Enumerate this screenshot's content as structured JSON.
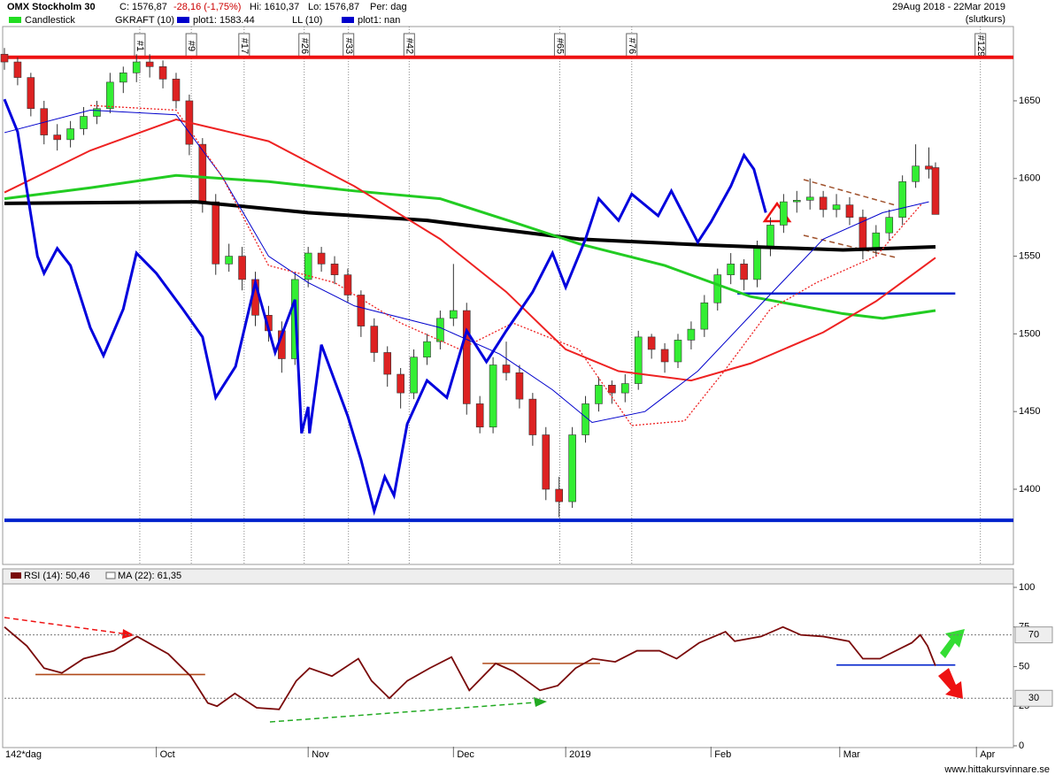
{
  "chart_data": {
    "type": "candlestick",
    "title": "OMX Stockholm 30",
    "header": {
      "close": "C: 1576,87",
      "change": "-28,16 (-1,75%)",
      "high": "Hi: 1610,37",
      "low": "Lo: 1576,87",
      "period": "Per: dag",
      "range": "29Aug 2018 - 22Mar 2019",
      "mode": "(slutkurs)"
    },
    "legend": [
      {
        "label": "Candlestick",
        "color": "#22dd22"
      },
      {
        "label": "GKRAFT (10)",
        "color": null
      },
      {
        "label": "plot1: 1583.44",
        "color": "#0000cc"
      },
      {
        "label": "LL (10)",
        "color": null
      },
      {
        "label": "plot1: nan",
        "color": "#0000cc"
      }
    ],
    "up_color": "#33ee33",
    "down_color": "#dd2222",
    "xlim": [
      0,
      152.8
    ],
    "xticks": [
      {
        "value": 23,
        "label": "Oct"
      },
      {
        "value": 46,
        "label": "Nov"
      },
      {
        "value": 68,
        "label": "Dec"
      },
      {
        "value": 85,
        "label": "2019"
      },
      {
        "value": 107,
        "label": "Feb"
      },
      {
        "value": 126.5,
        "label": "Mar"
      },
      {
        "value": 147.2,
        "label": "Apr"
      }
    ],
    "period_label": "142*dag",
    "ylim": [
      1351.6,
      1697.8
    ],
    "yticks": [
      1400,
      1450,
      1500,
      1550,
      1600,
      1650
    ],
    "candles": [
      [
        0,
        1680,
        1684,
        1670,
        1675
      ],
      [
        2,
        1675,
        1678,
        1660,
        1665
      ],
      [
        4,
        1665,
        1668,
        1640,
        1645
      ],
      [
        6,
        1645,
        1650,
        1622,
        1628
      ],
      [
        8,
        1628,
        1635,
        1618,
        1625
      ],
      [
        10,
        1625,
        1637,
        1620,
        1632
      ],
      [
        12,
        1632,
        1646,
        1628,
        1640
      ],
      [
        14,
        1640,
        1650,
        1635,
        1645
      ],
      [
        16,
        1645,
        1668,
        1642,
        1662
      ],
      [
        18,
        1662,
        1672,
        1655,
        1668
      ],
      [
        20,
        1668,
        1680,
        1662,
        1675
      ],
      [
        22,
        1675,
        1680,
        1665,
        1672
      ],
      [
        24,
        1672,
        1676,
        1658,
        1664
      ],
      [
        26,
        1664,
        1668,
        1645,
        1650
      ],
      [
        28,
        1650,
        1654,
        1615,
        1622
      ],
      [
        30,
        1622,
        1626,
        1578,
        1585
      ],
      [
        32,
        1585,
        1590,
        1538,
        1545
      ],
      [
        34,
        1545,
        1558,
        1540,
        1550
      ],
      [
        36,
        1550,
        1556,
        1528,
        1535
      ],
      [
        38,
        1535,
        1540,
        1505,
        1512
      ],
      [
        40,
        1512,
        1518,
        1495,
        1502
      ],
      [
        42,
        1502,
        1508,
        1475,
        1484
      ],
      [
        44,
        1484,
        1540,
        1480,
        1535
      ],
      [
        46,
        1535,
        1556,
        1530,
        1552
      ],
      [
        48,
        1552,
        1556,
        1540,
        1545
      ],
      [
        50,
        1545,
        1550,
        1532,
        1538
      ],
      [
        52,
        1538,
        1542,
        1520,
        1525
      ],
      [
        54,
        1525,
        1528,
        1498,
        1505
      ],
      [
        56,
        1505,
        1510,
        1482,
        1488
      ],
      [
        58,
        1488,
        1492,
        1466,
        1474
      ],
      [
        60,
        1474,
        1478,
        1452,
        1462
      ],
      [
        62,
        1462,
        1490,
        1458,
        1485
      ],
      [
        64,
        1485,
        1500,
        1480,
        1495
      ],
      [
        66,
        1495,
        1515,
        1490,
        1510
      ],
      [
        68,
        1510,
        1545,
        1505,
        1515
      ],
      [
        70,
        1515,
        1520,
        1448,
        1455
      ],
      [
        72,
        1455,
        1460,
        1436,
        1440
      ],
      [
        74,
        1440,
        1485,
        1436,
        1480
      ],
      [
        76,
        1480,
        1495,
        1470,
        1475
      ],
      [
        78,
        1475,
        1480,
        1452,
        1458
      ],
      [
        80,
        1458,
        1462,
        1428,
        1435
      ],
      [
        82,
        1435,
        1440,
        1393,
        1400
      ],
      [
        84,
        1400,
        1408,
        1382,
        1392
      ],
      [
        86,
        1392,
        1440,
        1388,
        1435
      ],
      [
        88,
        1435,
        1460,
        1430,
        1455
      ],
      [
        90,
        1455,
        1472,
        1450,
        1467
      ],
      [
        92,
        1467,
        1470,
        1455,
        1462
      ],
      [
        94,
        1462,
        1474,
        1456,
        1468
      ],
      [
        96,
        1468,
        1502,
        1464,
        1498
      ],
      [
        98,
        1498,
        1500,
        1484,
        1490
      ],
      [
        100,
        1490,
        1494,
        1475,
        1482
      ],
      [
        102,
        1482,
        1500,
        1478,
        1496
      ],
      [
        104,
        1496,
        1508,
        1490,
        1503
      ],
      [
        106,
        1503,
        1525,
        1498,
        1520
      ],
      [
        108,
        1520,
        1542,
        1515,
        1538
      ],
      [
        110,
        1538,
        1552,
        1532,
        1545
      ],
      [
        112,
        1545,
        1548,
        1528,
        1535
      ],
      [
        114,
        1535,
        1560,
        1530,
        1555
      ],
      [
        116,
        1555,
        1575,
        1550,
        1570
      ],
      [
        118,
        1570,
        1590,
        1565,
        1585
      ],
      [
        120,
        1585,
        1592,
        1578,
        1586
      ],
      [
        122,
        1586,
        1600,
        1580,
        1588
      ],
      [
        124,
        1588,
        1592,
        1575,
        1580
      ],
      [
        126,
        1580,
        1590,
        1575,
        1583
      ],
      [
        128,
        1583,
        1588,
        1570,
        1575
      ],
      [
        130,
        1575,
        1580,
        1548,
        1555
      ],
      [
        132,
        1555,
        1570,
        1550,
        1565
      ],
      [
        134,
        1565,
        1580,
        1560,
        1575
      ],
      [
        136,
        1575,
        1602,
        1570,
        1598
      ],
      [
        138,
        1598,
        1622,
        1594,
        1608
      ],
      [
        140,
        1608,
        1620,
        1600,
        1606
      ],
      [
        141,
        1607,
        1610.37,
        1576.87,
        1576.87
      ]
    ],
    "lines": [
      {
        "color": "#000000",
        "width": 4,
        "x": [
          0,
          29,
          46,
          64,
          87,
          107,
          127,
          141
        ],
        "values": [
          1584,
          1585,
          1578,
          1573,
          1561,
          1557,
          1554,
          1556
        ]
      },
      {
        "color": "#22cc22",
        "width": 3,
        "x": [
          0,
          13,
          26,
          40,
          53,
          66,
          77,
          87,
          100,
          113,
          127,
          133,
          141
        ],
        "values": [
          1587,
          1594,
          1602,
          1598,
          1592,
          1587,
          1572,
          1558,
          1544,
          1524,
          1513,
          1510,
          1515
        ]
      },
      {
        "color": "#ee2222",
        "width": 2,
        "x": [
          0,
          13,
          26,
          40,
          53,
          66,
          76,
          85,
          93,
          104,
          113,
          124,
          132,
          141
        ],
        "values": [
          1591,
          1618,
          1638,
          1624,
          1595,
          1561,
          1527,
          1490,
          1476,
          1470,
          1481,
          1501,
          1521,
          1549
        ]
      },
      {
        "color": "#0000cc",
        "width": 1,
        "x": [
          0,
          13,
          26,
          33,
          40,
          46,
          53,
          66,
          75,
          83,
          89,
          97,
          105,
          115,
          124,
          133,
          140
        ],
        "values": [
          1629.5,
          1644,
          1641,
          1601,
          1550,
          1533,
          1518,
          1504,
          1487,
          1464,
          1443,
          1450,
          1476,
          1521,
          1561,
          1578,
          1585
        ]
      },
      {
        "color": "#ee2222",
        "width": 1.3,
        "dash": true,
        "x": [
          13,
          26,
          33,
          40,
          50,
          60,
          69,
          77,
          87,
          95,
          103,
          109,
          116,
          123,
          132,
          139
        ],
        "values": [
          1647,
          1644,
          1601,
          1544,
          1533,
          1507,
          1490,
          1507,
          1490,
          1441,
          1444,
          1476,
          1516,
          1533,
          1550,
          1584
        ]
      },
      {
        "color": "#0000dd",
        "width": 3,
        "x": [
          0,
          2,
          5,
          6,
          8,
          10,
          13,
          15,
          18,
          20,
          23,
          27,
          30,
          32,
          35,
          38,
          41,
          44,
          45,
          46,
          46.2,
          48,
          52,
          54,
          56,
          57.6,
          59,
          61,
          64,
          67,
          70,
          73,
          76,
          80,
          83,
          85,
          88,
          90,
          93,
          95,
          99,
          101,
          105,
          107,
          110,
          112,
          113.5,
          115.3
        ],
        "values": [
          1651,
          1630,
          1550,
          1539,
          1555,
          1544,
          1504,
          1486,
          1516,
          1552,
          1539,
          1516,
          1498,
          1459,
          1479,
          1533,
          1488,
          1522,
          1436,
          1453,
          1436,
          1493,
          1447,
          1419,
          1386,
          1408,
          1396,
          1442,
          1470,
          1459,
          1502,
          1482,
          1502,
          1527,
          1552,
          1530,
          1561,
          1587,
          1573,
          1590,
          1576,
          1592,
          1559,
          1572,
          1595,
          1615,
          1606,
          1578
        ]
      }
    ],
    "hlines": [
      {
        "value": 1678,
        "color": "#ee1111",
        "x": [
          0,
          152.8
        ],
        "width": 4
      },
      {
        "value": 1380,
        "color": "#0022cc",
        "x": [
          0,
          152.8
        ],
        "width": 4
      },
      {
        "value": 1526,
        "color": "#0022cc",
        "x": [
          111,
          144
        ],
        "width": 2.5
      }
    ],
    "events": [
      {
        "label": "#1",
        "x": 20.5
      },
      {
        "label": "#9",
        "x": 28.3
      },
      {
        "label": "#17",
        "x": 36.3
      },
      {
        "label": "#26",
        "x": 45.4
      },
      {
        "label": "#33",
        "x": 52.1
      },
      {
        "label": "#42",
        "x": 61.3
      },
      {
        "label": "#65",
        "x": 84.1
      },
      {
        "label": "#76",
        "x": 95
      },
      {
        "label": "#129",
        "x": 147.8
      }
    ],
    "rsi": {
      "legend": "RSI (14): 50,46",
      "ma_legend": "MA (22): 61,35",
      "color": "#7a0a0a",
      "ylim": [
        -2.8,
        102.2
      ],
      "yticks": [
        0,
        25,
        50,
        75,
        100
      ],
      "levels": [
        70,
        30
      ],
      "x": [
        0,
        3.4,
        6,
        8.7,
        12,
        16.6,
        20.1,
        24.8,
        28.2,
        30.8,
        32.2,
        34.9,
        38.2,
        41.6,
        44.2,
        46.2,
        49.6,
        53.6,
        55.6,
        58.3,
        61,
        64.4,
        67.7,
        70.4,
        74.4,
        77.1,
        81.1,
        83.8,
        86.5,
        89.1,
        92.5,
        95.8,
        99.2,
        101.8,
        105.2,
        109.2,
        110.6,
        114.6,
        117.9,
        120.6,
        124,
        127.9,
        130,
        132.6,
        137.4,
        138.7,
        139.8,
        141
      ],
      "values": [
        75,
        63,
        49,
        46,
        55,
        60,
        69,
        58,
        44,
        27,
        25,
        33,
        24,
        23,
        41,
        49,
        44,
        55,
        41,
        30,
        41,
        49,
        56,
        35,
        52,
        47,
        35,
        38,
        49,
        55,
        53,
        60,
        60,
        55,
        65,
        72,
        66,
        69,
        75,
        70,
        69,
        66,
        55,
        55,
        65,
        70,
        63,
        50.46
      ]
    },
    "rsi_levels": [
      {
        "value": 45,
        "color": "#b04a1a",
        "x": [
          4.7,
          30.4
        ]
      },
      {
        "value": 52,
        "color": "#b04a1a",
        "x": [
          72.4,
          90.2
        ]
      },
      {
        "value": 51,
        "color": "#0022cc",
        "x": [
          126,
          144
        ]
      }
    ],
    "footer": "www.hittakursvinnare.se"
  }
}
